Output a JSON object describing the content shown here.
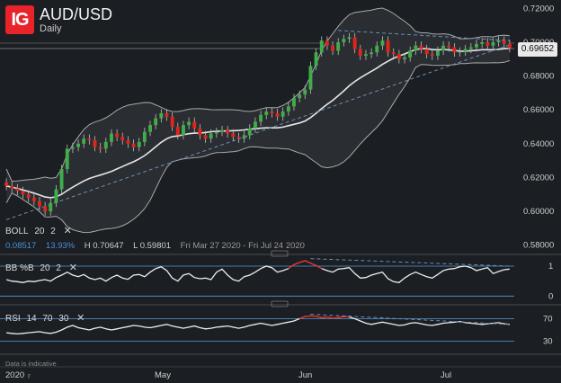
{
  "brand": {
    "logo_text": "IG"
  },
  "instrument": {
    "symbol": "AUD/USD",
    "interval": "Daily"
  },
  "price_axis": {
    "ticks": [
      "0.72000",
      "0.70000",
      "0.68000",
      "0.66000",
      "0.64000",
      "0.62000",
      "0.60000",
      "0.58000"
    ],
    "current_price": "0.69652"
  },
  "boll_legend": {
    "name": "BOLL",
    "period": "20",
    "stddev": "2",
    "close_icon": "close-icon",
    "val1": "0.08517",
    "val2": "13.93%",
    "high_label": "H",
    "high": "0.70647",
    "low_label": "L",
    "low": "0.59801",
    "range": "Fri Mar 27 2020 - Fri Jul 24 2020"
  },
  "bbpct": {
    "name": "BB %B",
    "period": "20",
    "stddev": "2",
    "close_icon": "close-icon",
    "ticks": [
      "1",
      "0"
    ]
  },
  "rsi": {
    "name": "RSI",
    "period": "14",
    "upper": "70",
    "lower": "30",
    "close_icon": "close-icon",
    "ticks": [
      "70",
      "30"
    ]
  },
  "x_axis": {
    "labels": [
      "2020",
      "May",
      "Jun",
      "Jul"
    ]
  },
  "disclaimer": "Data is indicative",
  "colors": {
    "up": "#3fae49",
    "down": "#e1251b",
    "band": "#a9a9a9",
    "trend": "#6b8fb7",
    "mid": "#e6e6e6",
    "bg": "#1b1e22"
  },
  "chart_data": {
    "type": "candlestick",
    "ylim": [
      0.575,
      0.725
    ],
    "x_labels": [
      "2020",
      "May",
      "Jun",
      "Jul"
    ],
    "closes": [
      0.615,
      0.6135,
      0.612,
      0.61,
      0.608,
      0.606,
      0.603,
      0.6,
      0.605,
      0.613,
      0.625,
      0.637,
      0.638,
      0.64,
      0.643,
      0.642,
      0.638,
      0.637,
      0.641,
      0.646,
      0.644,
      0.642,
      0.64,
      0.638,
      0.641,
      0.647,
      0.651,
      0.655,
      0.658,
      0.656,
      0.65,
      0.645,
      0.651,
      0.653,
      0.649,
      0.645,
      0.643,
      0.646,
      0.647,
      0.648,
      0.646,
      0.644,
      0.643,
      0.645,
      0.649,
      0.653,
      0.657,
      0.659,
      0.658,
      0.656,
      0.659,
      0.662,
      0.667,
      0.669,
      0.672,
      0.686,
      0.694,
      0.701,
      0.698,
      0.695,
      0.7,
      0.702,
      0.703,
      0.696,
      0.692,
      0.693,
      0.694,
      0.698,
      0.701,
      0.694,
      0.693,
      0.69,
      0.691,
      0.695,
      0.698,
      0.696,
      0.693,
      0.692,
      0.695,
      0.698,
      0.697,
      0.694,
      0.6945,
      0.696,
      0.697,
      0.699,
      0.7,
      0.698,
      0.7,
      0.701,
      0.699,
      0.6965
    ],
    "bb_pct_ylim": [
      -0.2,
      1.3
    ],
    "bb_pct": [
      0.55,
      0.5,
      0.48,
      0.45,
      0.5,
      0.48,
      0.52,
      0.55,
      0.5,
      0.62,
      0.7,
      0.8,
      0.7,
      0.65,
      0.72,
      0.6,
      0.55,
      0.6,
      0.5,
      0.62,
      0.7,
      0.6,
      0.56,
      0.7,
      0.72,
      0.65,
      0.8,
      0.92,
      0.98,
      0.85,
      0.6,
      0.5,
      0.7,
      0.75,
      0.62,
      0.58,
      0.6,
      0.55,
      0.8,
      0.9,
      0.7,
      0.55,
      0.5,
      0.65,
      0.7,
      0.8,
      0.92,
      1.0,
      0.95,
      0.8,
      0.85,
      0.92,
      1.05,
      1.12,
      1.18,
      1.1,
      1.02,
      0.92,
      0.85,
      0.8,
      0.9,
      0.92,
      0.95,
      0.75,
      0.6,
      0.62,
      0.7,
      0.75,
      0.8,
      0.58,
      0.48,
      0.45,
      0.6,
      0.72,
      0.8,
      0.72,
      0.65,
      0.6,
      0.72,
      0.85,
      0.9,
      0.92,
      0.98,
      1.0,
      0.95,
      0.85,
      0.9,
      0.95,
      0.75,
      0.82,
      0.88,
      0.9
    ],
    "rsi_ylim": [
      10,
      90
    ],
    "rsi": [
      45,
      44,
      43,
      44,
      45,
      46,
      47,
      45,
      44,
      46,
      50,
      55,
      58,
      54,
      52,
      50,
      53,
      55,
      52,
      50,
      52,
      54,
      56,
      58,
      57,
      55,
      54,
      56,
      58,
      60,
      57,
      55,
      53,
      55,
      57,
      54,
      52,
      53,
      55,
      56,
      57,
      55,
      53,
      55,
      58,
      60,
      62,
      60,
      58,
      60,
      62,
      64,
      66,
      70,
      74,
      75,
      74,
      72,
      73,
      71,
      72,
      74,
      73,
      70,
      66,
      62,
      60,
      62,
      64,
      62,
      60,
      58,
      59,
      62,
      63,
      61,
      59,
      58,
      60,
      62,
      63,
      64,
      65,
      63,
      62,
      61,
      60,
      61,
      62,
      63,
      61,
      60
    ]
  }
}
